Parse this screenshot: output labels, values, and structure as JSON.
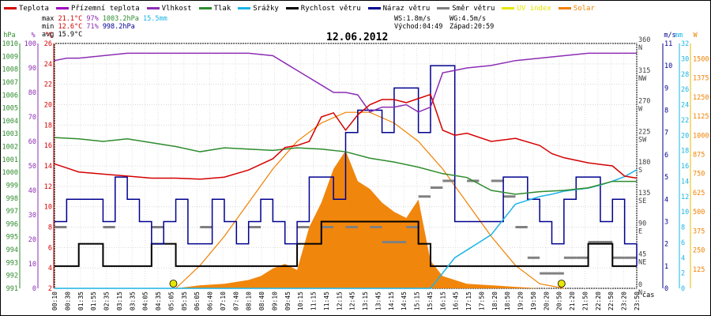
{
  "legend": [
    {
      "label": "Teplota",
      "color": "#d40000"
    },
    {
      "label": "Přízemní teplota",
      "color": "#a000c0"
    },
    {
      "label": "Vlhkost",
      "color": "#8c2db4"
    },
    {
      "label": "Tlak",
      "color": "#2e8b2e"
    },
    {
      "label": "Srážky",
      "color": "#1ab4e6"
    },
    {
      "label": "Rychlost větru",
      "color": "#000000"
    },
    {
      "label": "Náraz větru",
      "color": "#000090"
    },
    {
      "label": "Směr větru",
      "color": "#808080"
    },
    {
      "label": "UV index",
      "color": "#e6e600"
    },
    {
      "label": "Solar",
      "color": "#f08000"
    }
  ],
  "stats": {
    "max_label": "max",
    "max_temp": "21.1°C",
    "max_hum": "97%",
    "max_press": "1003.2hPa",
    "max_rain": "15.5mm",
    "min_label": "min",
    "min_temp": "12.6°C",
    "min_hum": "71%",
    "min_press": "998.2hPa",
    "avg_label": "avg",
    "avg_temp": "15.9°C",
    "ws": "WS:1.8m/s",
    "wg": "WG:4.5m/s",
    "sunrise": "Východ:04:49",
    "sunset": "Západ:20:59"
  },
  "chart_data": {
    "type": "line",
    "title": "12.06.2012",
    "x_axis_label": "čas",
    "x_ticks": [
      "00:10",
      "00:30",
      "01:35",
      "01:55",
      "02:35",
      "03:15",
      "03:35",
      "04:05",
      "04:35",
      "05:05",
      "05:35",
      "06:05",
      "06:40",
      "07:10",
      "07:40",
      "08:10",
      "08:40",
      "09:10",
      "09:45",
      "10:15",
      "11:15",
      "11:45",
      "12:15",
      "12:45",
      "13:15",
      "13:45",
      "14:15",
      "14:45",
      "15:15",
      "15:45",
      "16:15",
      "16:45",
      "17:15",
      "17:50",
      "18:20",
      "18:50",
      "19:20",
      "19:50",
      "20:20",
      "20:50",
      "21:20",
      "21:50",
      "22:20",
      "22:50",
      "23:20",
      "23:50"
    ],
    "axes": {
      "pressure": {
        "unit": "hPa",
        "min": 991,
        "max": 1010,
        "ticks": [
          991,
          992,
          993,
          994,
          995,
          996,
          997,
          998,
          999,
          1000,
          1001,
          1002,
          1003,
          1004,
          1005,
          1006,
          1007,
          1008,
          1009,
          1010
        ]
      },
      "humidity": {
        "unit": "%",
        "min": 0,
        "max": 100,
        "ticks": [
          0,
          10,
          20,
          30,
          40,
          50,
          60,
          70,
          80,
          90,
          100
        ]
      },
      "temperature": {
        "unit": "°C",
        "min": 2,
        "max": 26,
        "ticks": [
          2,
          4,
          6,
          8,
          10,
          12,
          14,
          16,
          18,
          20,
          22,
          24,
          26
        ]
      },
      "wind_dir": {
        "unit": "°",
        "min": 0,
        "max": 360,
        "ticks": [
          0,
          45,
          90,
          135,
          180,
          225,
          270,
          315,
          360
        ],
        "labels": [
          "N",
          "NE",
          "E",
          "SE",
          "S",
          "SW",
          "W",
          "NW",
          "N"
        ]
      },
      "wind_speed": {
        "unit": "m/s",
        "min": 0,
        "max": 11,
        "ticks": [
          0,
          1,
          2,
          3,
          4,
          5,
          6,
          7,
          8,
          9,
          10,
          11
        ]
      },
      "rain": {
        "unit": "mm",
        "min": 0,
        "max": 32,
        "ticks": [
          0,
          2,
          4,
          6,
          8,
          10,
          12,
          14,
          16,
          18,
          20,
          22,
          24,
          26,
          28,
          30,
          32
        ]
      },
      "solar": {
        "unit": "W",
        "min": 0,
        "max": 1600,
        "ticks": [
          0,
          125,
          250,
          375,
          500,
          625,
          750,
          875,
          1000,
          1125,
          1250,
          1375,
          1500
        ]
      }
    },
    "series": [
      {
        "name": "Teplota",
        "axis": "temperature",
        "color": "#d40000",
        "x": [
          0,
          0.5,
          1,
          2,
          3,
          4,
          5,
          6,
          7,
          8,
          9,
          9.5,
          10,
          10.5,
          11,
          11.5,
          12,
          12.5,
          13,
          13.5,
          14,
          14.5,
          15,
          15.5,
          16,
          16.5,
          17,
          18,
          19,
          20,
          20.5,
          21,
          22,
          23,
          23.5,
          24
        ],
        "values": [
          14.2,
          13.8,
          13.4,
          13.2,
          13.0,
          12.8,
          12.8,
          12.7,
          12.9,
          13.6,
          14.7,
          15.8,
          16.0,
          16.4,
          18.8,
          19.2,
          17.5,
          19.0,
          20.0,
          20.5,
          20.5,
          20.2,
          20.6,
          21.0,
          17.5,
          17.0,
          17.2,
          16.4,
          16.7,
          16.0,
          15.2,
          14.8,
          14.3,
          14.0,
          13.0,
          12.8
        ]
      },
      {
        "name": "Vlhkost",
        "axis": "humidity",
        "color": "#8c2db4",
        "x": [
          0,
          0.5,
          1,
          2,
          3,
          4,
          5,
          6,
          7,
          8,
          9,
          9.5,
          10,
          10.5,
          11,
          11.5,
          12,
          12.5,
          13,
          13.5,
          14,
          14.5,
          15,
          15.5,
          16,
          16.5,
          17,
          18,
          19,
          20,
          21,
          22,
          23,
          24
        ],
        "values": [
          93,
          94,
          94,
          95,
          96,
          96,
          96,
          96,
          96,
          96,
          95,
          92,
          89,
          86,
          83,
          80,
          80,
          79,
          72,
          74,
          74,
          75,
          72,
          74,
          88,
          89,
          90,
          91,
          93,
          94,
          95,
          96,
          96,
          96
        ]
      },
      {
        "name": "Tlak",
        "axis": "pressure",
        "color": "#2e8b2e",
        "x": [
          0,
          1,
          2,
          3,
          4,
          5,
          6,
          7,
          8,
          9,
          10,
          11,
          12,
          13,
          14,
          15,
          16,
          17,
          18,
          19,
          20,
          21,
          22,
          23,
          24
        ],
        "values": [
          1002.7,
          1002.6,
          1002.4,
          1002.6,
          1002.3,
          1002.0,
          1001.6,
          1001.9,
          1001.8,
          1001.7,
          1001.9,
          1001.8,
          1001.6,
          1001.1,
          1000.8,
          1000.4,
          999.9,
          999.6,
          998.6,
          998.3,
          998.5,
          998.6,
          998.8,
          999.3,
          999.3
        ]
      },
      {
        "name": "Srážky",
        "axis": "rain",
        "color": "#1ab4e6",
        "x": [
          0,
          15,
          15.5,
          16,
          16.5,
          17,
          17.5,
          18,
          18.5,
          19,
          19.5,
          20,
          20.5,
          21,
          21.5,
          22,
          22.5,
          23,
          23.5,
          24
        ],
        "values": [
          0,
          0,
          0,
          2,
          4,
          5,
          6,
          7,
          9,
          11,
          11.5,
          12,
          12.3,
          12.7,
          12.9,
          13.1,
          13.5,
          14.0,
          14.6,
          15.5
        ]
      },
      {
        "name": "Rychlost větru",
        "axis": "wind_speed",
        "color": "#000000",
        "x": [
          0,
          0.5,
          1,
          1.5,
          2,
          3,
          4,
          5,
          6,
          7,
          8,
          9,
          10,
          10.5,
          11,
          12,
          13,
          14,
          15,
          15.5,
          16,
          17,
          18,
          19,
          20,
          21,
          22,
          23,
          24
        ],
        "values": [
          1,
          1,
          2,
          2,
          1,
          1,
          2,
          1,
          1,
          1,
          1,
          1,
          2,
          2,
          3,
          3,
          3,
          3,
          2,
          1,
          1,
          1,
          1,
          1,
          1,
          1,
          2,
          1,
          1
        ]
      },
      {
        "name": "Náraz větru",
        "axis": "wind_speed",
        "color": "#000090",
        "x": [
          0,
          0.5,
          1,
          1.5,
          2,
          2.5,
          3,
          3.5,
          4,
          4.5,
          5,
          5.5,
          6,
          6.5,
          7,
          7.5,
          8,
          8.5,
          9,
          9.5,
          10,
          10.5,
          11,
          11.5,
          12,
          12.5,
          13,
          13.5,
          14,
          14.5,
          15,
          15.5,
          16,
          16.5,
          17,
          17.5,
          18,
          18.5,
          19,
          19.5,
          20,
          20.5,
          21,
          21.5,
          22,
          22.5,
          23,
          23.5,
          24
        ],
        "values": [
          3,
          4,
          4,
          4,
          3,
          5,
          4,
          3,
          2,
          3,
          4,
          2,
          2,
          4,
          3,
          2,
          3,
          4,
          3,
          2,
          3,
          5,
          5,
          4,
          7,
          8,
          8,
          7,
          9,
          9,
          7,
          10,
          10,
          3,
          3,
          3,
          3,
          5,
          5,
          4,
          3,
          2,
          4,
          5,
          5,
          3,
          4,
          2,
          1
        ]
      },
      {
        "name": "Solar",
        "axis": "solar",
        "color": "#f08000",
        "x": [
          0,
          5,
          6,
          7,
          8,
          8.5,
          9,
          9.5,
          10,
          10.5,
          11,
          11.5,
          12,
          12.5,
          13,
          13.5,
          14,
          14.5,
          15,
          15.5,
          16,
          17,
          18,
          19,
          20,
          21,
          24
        ],
        "values": [
          0,
          0,
          20,
          30,
          55,
          80,
          130,
          160,
          120,
          400,
          560,
          780,
          900,
          700,
          650,
          560,
          500,
          460,
          580,
          180,
          80,
          30,
          20,
          10,
          0,
          0,
          0
        ]
      }
    ],
    "theoretical_solar": {
      "name": "Solar (max)",
      "color": "#f08000",
      "x": [
        5,
        6,
        7,
        8,
        9,
        10,
        11,
        12,
        13,
        14,
        15,
        16,
        17,
        18,
        19,
        20,
        21
      ],
      "values": [
        0,
        150,
        340,
        560,
        780,
        960,
        1080,
        1150,
        1150,
        1080,
        960,
        780,
        560,
        340,
        150,
        30,
        0
      ]
    },
    "wind_direction": {
      "axis": "wind_dir",
      "color": "#808080",
      "x": [
        0,
        2,
        4,
        6,
        8,
        10,
        11,
        12,
        13,
        13.5,
        14,
        14.5,
        15,
        15.5,
        16,
        17,
        18,
        18.5,
        19,
        19.5,
        20,
        20.5,
        21,
        21.5,
        22,
        22.5,
        23,
        23.5
      ],
      "values": [
        90,
        90,
        90,
        90,
        90,
        90,
        90,
        90,
        90,
        68,
        68,
        90,
        135,
        148,
        158,
        158,
        158,
        135,
        90,
        45,
        22,
        22,
        45,
        45,
        68,
        68,
        45,
        45
      ]
    },
    "uv_index": {
      "color": "#e6e600",
      "points": [
        {
          "x": 4.9,
          "value": 0
        },
        {
          "x": 20.9,
          "value": 0
        }
      ]
    },
    "grid": true,
    "legend_position": "top"
  }
}
